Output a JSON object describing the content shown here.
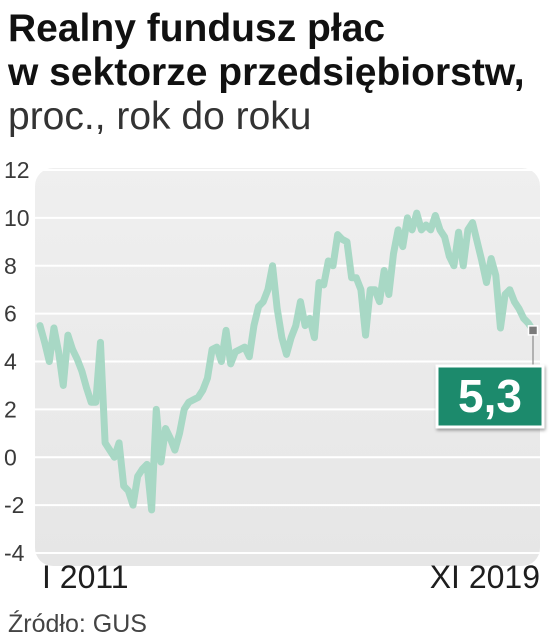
{
  "chart_data": {
    "type": "line",
    "title_lines": [
      "Realny fundusz płac",
      "w sektorze przedsiębiorstw,"
    ],
    "subtitle": "proc., rok do roku",
    "source": "Źródło: GUS",
    "ylim": [
      -4,
      12
    ],
    "y_ticks": [
      12,
      10,
      8,
      6,
      4,
      2,
      0,
      -2,
      -4
    ],
    "x_ticks": [
      "I 2011",
      "XI 2019"
    ],
    "grid": true,
    "last_value_label": "5,3",
    "callout_color": "#1b8a6c",
    "series": [
      {
        "color": "#a8d8c5",
        "values": [
          5.5,
          4.8,
          4.0,
          5.4,
          4.4,
          3.0,
          5.1,
          4.5,
          4.1,
          3.6,
          2.9,
          2.3,
          2.3,
          4.8,
          0.6,
          0.3,
          0.0,
          0.6,
          -1.2,
          -1.4,
          -2.0,
          -0.8,
          -0.5,
          -0.3,
          -2.2,
          2.0,
          -0.2,
          1.2,
          0.8,
          0.3,
          1.0,
          2.0,
          2.3,
          2.4,
          2.5,
          2.8,
          3.3,
          4.5,
          4.6,
          4.0,
          5.3,
          3.9,
          4.4,
          4.5,
          4.6,
          4.2,
          5.5,
          6.3,
          6.5,
          7.0,
          8.0,
          6.2,
          5.0,
          4.3,
          5.0,
          5.5,
          6.5,
          5.5,
          5.8,
          5.0,
          7.3,
          7.2,
          8.2,
          8.0,
          9.3,
          9.1,
          9.0,
          7.5,
          7.5,
          7.0,
          5.1,
          7.0,
          7.0,
          6.5,
          7.8,
          6.8,
          8.5,
          9.5,
          8.8,
          10.0,
          9.5,
          10.2,
          9.5,
          9.7,
          9.5,
          10.1,
          9.5,
          9.2,
          8.4,
          8.0,
          9.4,
          8.0,
          9.5,
          9.8,
          9.0,
          8.2,
          7.3,
          8.3,
          7.6,
          5.4,
          6.8,
          7.0,
          6.5,
          6.2,
          5.8,
          5.6,
          5.3
        ]
      }
    ]
  }
}
